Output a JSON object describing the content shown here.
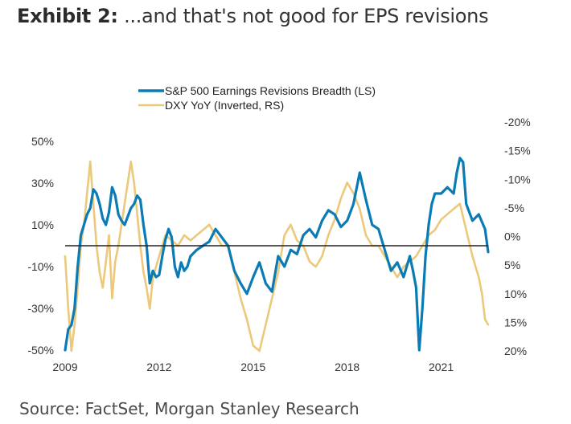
{
  "title": {
    "bold": "Exhibit 2:",
    "rest": " ...and that's not good for EPS revisions"
  },
  "source": "Source: FactSet, Morgan Stanley Research",
  "colors": {
    "sp500": "#0a7bb5",
    "dxy": "#ecc97a",
    "zero_line": "#222222"
  },
  "chart_data": {
    "type": "line",
    "title": "",
    "legend": [
      "S&P 500 Earnings Revisions Breadth (LS)",
      "DXY YoY (Inverted, RS)"
    ],
    "legend_position": "top-center",
    "grid": false,
    "x_ticks": [
      "2009",
      "2012",
      "2015",
      "2018",
      "2021"
    ],
    "xlim": [
      2009.0,
      2022.5
    ],
    "left_axis": {
      "label": "",
      "ticks": [
        "50%",
        "30%",
        "10%",
        "-10%",
        "-30%",
        "-50%"
      ],
      "tick_values": [
        50,
        30,
        10,
        -10,
        -30,
        -50
      ],
      "ylim": [
        -50,
        50
      ]
    },
    "right_axis": {
      "label": "",
      "inverted": true,
      "ticks": [
        "-20%",
        "-15%",
        "-10%",
        "-5%",
        "0%",
        "5%",
        "10%",
        "15%",
        "20%"
      ],
      "tick_values": [
        -20,
        -15,
        -10,
        -5,
        0,
        5,
        10,
        15,
        20
      ],
      "ylim": [
        -20,
        20
      ]
    },
    "series": [
      {
        "name": "S&P 500 Earnings Revisions Breadth (LS)",
        "axis": "left",
        "x": [
          2009.0,
          2009.1,
          2009.2,
          2009.3,
          2009.4,
          2009.5,
          2009.6,
          2009.7,
          2009.8,
          2009.9,
          2010.0,
          2010.1,
          2010.2,
          2010.3,
          2010.4,
          2010.5,
          2010.6,
          2010.7,
          2010.8,
          2010.9,
          2011.0,
          2011.1,
          2011.2,
          2011.3,
          2011.4,
          2011.5,
          2011.6,
          2011.7,
          2011.8,
          2011.9,
          2012.0,
          2012.1,
          2012.2,
          2012.3,
          2012.4,
          2012.5,
          2012.6,
          2012.7,
          2012.8,
          2012.9,
          2013.0,
          2013.2,
          2013.4,
          2013.6,
          2013.8,
          2014.0,
          2014.2,
          2014.4,
          2014.6,
          2014.8,
          2015.0,
          2015.2,
          2015.4,
          2015.6,
          2015.8,
          2016.0,
          2016.2,
          2016.4,
          2016.6,
          2016.8,
          2017.0,
          2017.2,
          2017.4,
          2017.6,
          2017.8,
          2018.0,
          2018.2,
          2018.4,
          2018.6,
          2018.8,
          2019.0,
          2019.2,
          2019.4,
          2019.6,
          2019.8,
          2020.0,
          2020.1,
          2020.2,
          2020.3,
          2020.4,
          2020.5,
          2020.6,
          2020.7,
          2020.8,
          2021.0,
          2021.2,
          2021.4,
          2021.5,
          2021.6,
          2021.7,
          2021.8,
          2022.0,
          2022.2,
          2022.4,
          2022.5
        ],
        "values": [
          -50,
          -40,
          -38,
          -30,
          -10,
          5,
          10,
          15,
          18,
          27,
          25,
          20,
          13,
          10,
          16,
          28,
          24,
          15,
          12,
          10,
          14,
          18,
          20,
          24,
          22,
          10,
          0,
          -18,
          -12,
          -15,
          -14,
          -5,
          3,
          8,
          4,
          -10,
          -15,
          -8,
          -12,
          -10,
          -5,
          -2,
          0,
          2,
          8,
          4,
          0,
          -12,
          -18,
          -23,
          -15,
          -8,
          -18,
          -22,
          -5,
          -10,
          -2,
          -4,
          5,
          8,
          4,
          12,
          17,
          15,
          9,
          12,
          20,
          35,
          22,
          10,
          8,
          -2,
          -12,
          -8,
          -15,
          -5,
          -12,
          -20,
          -50,
          -30,
          -5,
          10,
          20,
          25,
          25,
          28,
          25,
          35,
          42,
          40,
          20,
          12,
          15,
          8,
          -3
        ]
      },
      {
        "name": "DXY YoY (Inverted, RS)",
        "axis": "right",
        "x": [
          2009.0,
          2009.1,
          2009.2,
          2009.3,
          2009.4,
          2009.5,
          2009.6,
          2009.7,
          2009.8,
          2009.9,
          2010.0,
          2010.1,
          2010.2,
          2010.3,
          2010.4,
          2010.5,
          2010.6,
          2010.7,
          2010.8,
          2010.9,
          2011.0,
          2011.1,
          2011.2,
          2011.3,
          2011.4,
          2011.5,
          2011.6,
          2011.7,
          2011.8,
          2011.9,
          2012.0,
          2012.2,
          2012.4,
          2012.6,
          2012.8,
          2013.0,
          2013.2,
          2013.4,
          2013.6,
          2013.8,
          2014.0,
          2014.2,
          2014.4,
          2014.6,
          2014.8,
          2015.0,
          2015.2,
          2015.4,
          2015.6,
          2015.8,
          2016.0,
          2016.2,
          2016.4,
          2016.6,
          2016.8,
          2017.0,
          2017.2,
          2017.4,
          2017.6,
          2017.8,
          2018.0,
          2018.2,
          2018.4,
          2018.6,
          2018.8,
          2019.0,
          2019.2,
          2019.4,
          2019.6,
          2019.8,
          2020.0,
          2020.2,
          2020.4,
          2020.6,
          2020.8,
          2021.0,
          2021.2,
          2021.4,
          2021.6,
          2021.8,
          2022.0,
          2022.1,
          2022.2,
          2022.3,
          2022.4,
          2022.5
        ],
        "values": [
          2,
          12,
          20,
          15,
          8,
          0,
          -4,
          -10,
          -16,
          -8,
          0,
          5,
          8,
          3,
          -2,
          10,
          3,
          0,
          -4,
          -8,
          -12,
          -16,
          -12,
          -6,
          0,
          5,
          8,
          12,
          6,
          4,
          2,
          -2,
          -1,
          0,
          -2,
          -1,
          -2,
          -3,
          -4,
          -2,
          0,
          0,
          5,
          10,
          14,
          19,
          20,
          15,
          10,
          5,
          -2,
          -4,
          -1,
          0,
          3,
          4,
          2,
          -2,
          -5,
          -9,
          -12,
          -10,
          -7,
          -2,
          0,
          0,
          2,
          4,
          6,
          4,
          3,
          2,
          0,
          -2,
          -3,
          -5,
          -6,
          -7,
          -8,
          -3,
          2,
          4,
          6,
          9,
          14,
          15
        ]
      }
    ]
  }
}
